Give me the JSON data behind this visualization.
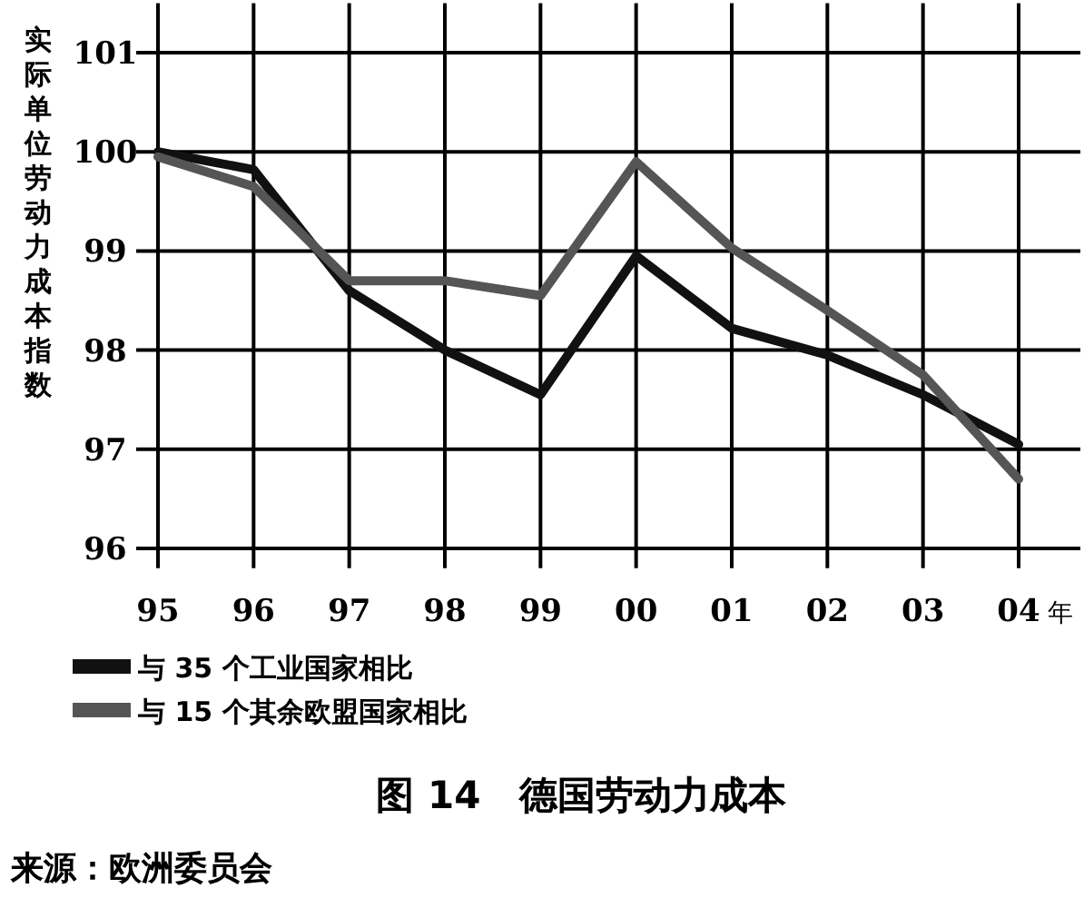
{
  "chart_data": {
    "type": "line",
    "title": "图 14　德国劳动力成本",
    "ylabel": "实际单位劳动力成本指数",
    "xlabel": "年",
    "categories": [
      "95",
      "96",
      "97",
      "98",
      "99",
      "00",
      "01",
      "02",
      "03",
      "04"
    ],
    "series": [
      {
        "name": "与 35 个工业国家相比",
        "color": "#111111",
        "values": [
          100,
          99.82,
          98.6,
          98.0,
          97.55,
          98.95,
          98.22,
          97.95,
          97.55,
          97.05
        ]
      },
      {
        "name": "与 15 个其余欧盟国家相比",
        "color": "#555555",
        "values": [
          99.95,
          99.65,
          98.7,
          98.7,
          98.55,
          99.9,
          99.03,
          98.4,
          97.75,
          96.7
        ]
      }
    ],
    "ylim": [
      95.8,
      101.5
    ],
    "yticks": [
      96,
      97,
      98,
      99,
      100,
      101
    ],
    "grid": true,
    "legend": "bottom",
    "marker": "none",
    "line_style": "solid",
    "annotations": [
      "来源：欧洲委员会"
    ]
  }
}
